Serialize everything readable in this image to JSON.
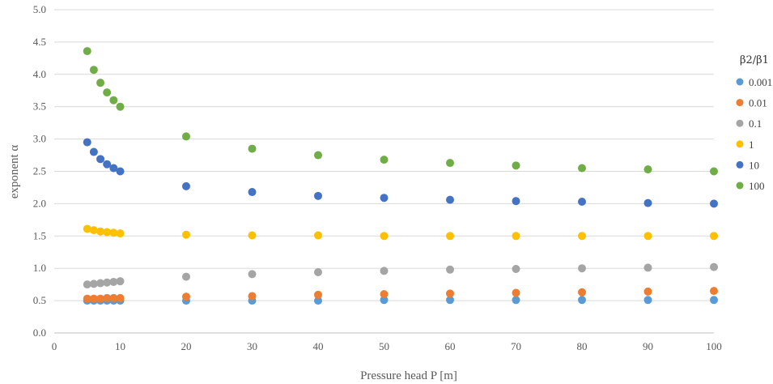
{
  "chart_data": {
    "type": "scatter",
    "xlabel": "Pressure head P [m]",
    "ylabel": "exponent α",
    "xlim": [
      0,
      100
    ],
    "ylim": [
      0,
      5
    ],
    "xticks": [
      "0",
      "10",
      "20",
      "30",
      "40",
      "50",
      "60",
      "70",
      "80",
      "90",
      "100"
    ],
    "yticks": [
      "0.0",
      "0.5",
      "1.0",
      "1.5",
      "2.0",
      "2.5",
      "3.0",
      "3.5",
      "4.0",
      "4.5",
      "5.0"
    ],
    "grid": "horizontal",
    "legend": {
      "title": "β2/β1",
      "placement": "right"
    },
    "x": [
      5,
      6,
      7,
      8,
      9,
      10,
      20,
      30,
      40,
      50,
      60,
      70,
      80,
      90,
      100
    ],
    "series": [
      {
        "name": "0.001",
        "color": "#5B9BD5",
        "values": [
          0.5,
          0.5,
          0.5,
          0.5,
          0.5,
          0.5,
          0.5,
          0.5,
          0.5,
          0.51,
          0.51,
          0.51,
          0.51,
          0.51,
          0.51
        ]
      },
      {
        "name": "0.01",
        "color": "#ED7D31",
        "values": [
          0.53,
          0.53,
          0.53,
          0.54,
          0.54,
          0.54,
          0.56,
          0.57,
          0.59,
          0.6,
          0.61,
          0.62,
          0.63,
          0.64,
          0.65
        ]
      },
      {
        "name": "0.1",
        "color": "#A5A5A5",
        "values": [
          0.75,
          0.76,
          0.77,
          0.78,
          0.79,
          0.8,
          0.87,
          0.91,
          0.94,
          0.96,
          0.98,
          0.99,
          1.0,
          1.01,
          1.02
        ]
      },
      {
        "name": "1",
        "color": "#FFC000",
        "values": [
          1.61,
          1.59,
          1.57,
          1.56,
          1.55,
          1.54,
          1.52,
          1.51,
          1.51,
          1.5,
          1.5,
          1.5,
          1.5,
          1.5,
          1.5
        ]
      },
      {
        "name": "10",
        "color": "#4472C4",
        "values": [
          2.95,
          2.8,
          2.69,
          2.61,
          2.55,
          2.5,
          2.27,
          2.18,
          2.12,
          2.09,
          2.06,
          2.04,
          2.03,
          2.01,
          2.0
        ]
      },
      {
        "name": "100",
        "color": "#70AD47",
        "values": [
          4.36,
          4.07,
          3.87,
          3.72,
          3.6,
          3.5,
          3.04,
          2.85,
          2.75,
          2.68,
          2.63,
          2.59,
          2.55,
          2.53,
          2.5
        ]
      }
    ]
  }
}
